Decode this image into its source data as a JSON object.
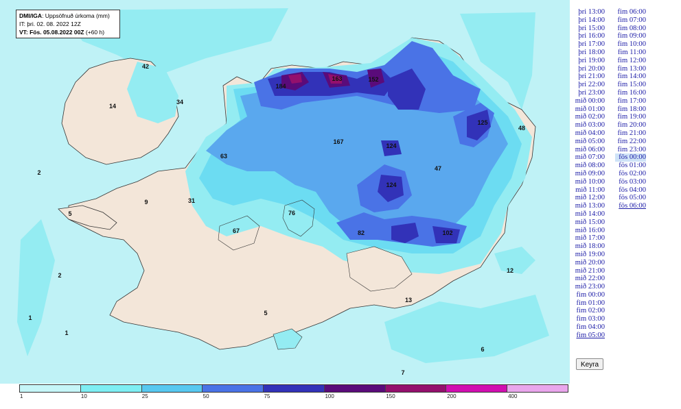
{
  "info": {
    "title_bold": "DMI/IGA",
    "title_rest": ": Uppsöfnuð úrkoma (mm)",
    "issue_time": "IT: þri. 02. 08. 2022 12Z",
    "valid_label": "VT: Fös. 05.08.2022 00Z",
    "valid_extra": " (+60 h)"
  },
  "legend": {
    "labels": [
      "1",
      "10",
      "25",
      "50",
      "75",
      "100",
      "150",
      "200",
      "400"
    ],
    "colors": [
      "#c6f6f8",
      "#7eeef3",
      "#57c8f0",
      "#4a73e6",
      "#3232b8",
      "#5a0b7a",
      "#94106d",
      "#d10fb0",
      "#e9a6ec"
    ]
  },
  "map_colors": {
    "sea": "#bff2f6",
    "land": "#f3e6d9",
    "light_cyan": "#94ecf2",
    "cyan": "#6cdcf2",
    "blue": "#5aa8ee",
    "mid_blue": "#4a73e6",
    "dark_blue": "#3232b8",
    "purple": "#5a0b7a",
    "magenta": "#94106d"
  },
  "values": {
    "v42": "42",
    "v34": "34",
    "v14": "14",
    "v2a": "2",
    "v9": "9",
    "v5a": "5",
    "v31": "31",
    "v2b": "2",
    "v1a": "1",
    "v1b": "1",
    "v5b": "5",
    "v7": "7",
    "v6": "6",
    "v12": "12",
    "v13": "13",
    "v48": "48",
    "v47": "47",
    "v125": "125",
    "v124a": "124",
    "v124b": "124",
    "v184": "184",
    "v163": "163",
    "v152": "152",
    "v167": "167",
    "v63": "63",
    "v67": "67",
    "v76": "76",
    "v82": "82",
    "v102": "102"
  },
  "timesteps_col1": [
    "þri 13:00",
    "þri 14:00",
    "þri 15:00",
    "þri 16:00",
    "þri 17:00",
    "þri 18:00",
    "þri 19:00",
    "þri 20:00",
    "þri 21:00",
    "þri 22:00",
    "þri 23:00",
    "mið 00:00",
    "mið 01:00",
    "mið 02:00",
    "mið 03:00",
    "mið 04:00",
    "mið 05:00",
    "mið 06:00",
    "mið 07:00",
    "mið 08:00",
    "mið 09:00",
    "mið 10:00",
    "mið 11:00",
    "mið 12:00",
    "mið 13:00",
    "mið 14:00",
    "mið 15:00",
    "mið 16:00",
    "mið 17:00",
    "mið 18:00",
    "mið 19:00",
    "mið 20:00",
    "mið 21:00",
    "mið 22:00",
    "mið 23:00",
    "fim 00:00",
    "fim 01:00",
    "fim 02:00",
    "fim 03:00",
    "fim 04:00",
    "fim 05:00"
  ],
  "timesteps_col2": [
    "fim 06:00",
    "fim 07:00",
    "fim 08:00",
    "fim 09:00",
    "fim 10:00",
    "fim 11:00",
    "fim 12:00",
    "fim 13:00",
    "fim 14:00",
    "fim 15:00",
    "fim 16:00",
    "fim 17:00",
    "fim 18:00",
    "fim 19:00",
    "fim 20:00",
    "fim 21:00",
    "fim 22:00",
    "fim 23:00",
    "fös 00:00",
    "fös 01:00",
    "fös 02:00",
    "fös 03:00",
    "fös 04:00",
    "fös 05:00",
    "fös 06:00"
  ],
  "selected_timestep": "fös 00:00",
  "run_button": "Keyra"
}
